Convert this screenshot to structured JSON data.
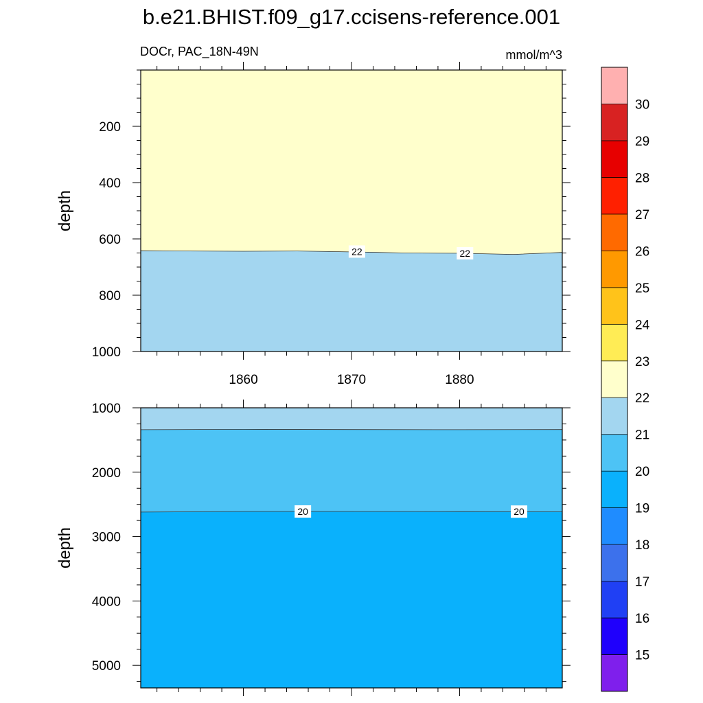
{
  "title": "b.e21.BHIST.f09_g17.ccisens-reference.001",
  "subtitle_left": "DOCr, PAC_18N-49N",
  "subtitle_right": "mmol/m^3",
  "chart_data": {
    "type": "heatmap",
    "x_ticks": [
      1860,
      1870,
      1880
    ],
    "xlim": [
      1850.5,
      1889.5
    ],
    "panels": [
      {
        "name": "upper",
        "ylabel": "depth",
        "ylim": [
          0,
          1000
        ],
        "y_reversed": true,
        "y_ticks": [
          200,
          400,
          600,
          800,
          1000
        ],
        "y_minor_step": 50,
        "show_x_tick_labels": true,
        "bands": [
          {
            "from": 0,
            "color": "#ffffcc"
          },
          {
            "contour": 22,
            "color": "#a3d6f0",
            "x": [
              1850.5,
              1855,
              1860,
              1865,
              1870,
              1875,
              1880,
              1885,
              1889.5
            ],
            "depth": [
              642,
              643,
              644,
              643,
              646,
              650,
              651,
              655,
              648
            ]
          }
        ],
        "contour_labels": [
          {
            "text": "22",
            "x": 1870.5,
            "depth": 645
          },
          {
            "text": "22",
            "x": 1880.5,
            "depth": 651
          }
        ]
      },
      {
        "name": "lower",
        "ylabel": "depth",
        "ylim": [
          1000,
          5350
        ],
        "y_reversed": true,
        "y_ticks": [
          1000,
          2000,
          3000,
          4000,
          5000
        ],
        "y_minor_step": 250,
        "show_x_tick_labels": false,
        "bands": [
          {
            "from": 1000,
            "color": "#a3d6f0"
          },
          {
            "contour": 21,
            "color": "#4dc3f5",
            "x": [
              1850.5,
              1860,
              1870,
              1880,
              1889.5
            ],
            "depth": [
              1340,
              1335,
              1338,
              1340,
              1338
            ]
          },
          {
            "contour": 20,
            "color": "#0ab1fc",
            "x": [
              1850.5,
              1860,
              1870,
              1880,
              1889.5
            ],
            "depth": [
              2620,
              2610,
              2610,
              2612,
              2615
            ]
          }
        ],
        "contour_labels": [
          {
            "text": "20",
            "x": 1865.5,
            "depth": 2610
          },
          {
            "text": "20",
            "x": 1885.5,
            "depth": 2612
          }
        ]
      }
    ],
    "colorbar": {
      "labels": [
        "15",
        "16",
        "17",
        "18",
        "19",
        "20",
        "21",
        "22",
        "23",
        "24",
        "25",
        "26",
        "27",
        "28",
        "29",
        "30"
      ],
      "colors": [
        "#7f1fec",
        "#1f00fc",
        "#2040f4",
        "#3c71ec",
        "#1f8cff",
        "#0ab1fc",
        "#4dc3f5",
        "#a3d6f0",
        "#ffffcc",
        "#ffec55",
        "#ffc31a",
        "#ff9900",
        "#ff6a00",
        "#ff2000",
        "#e70000",
        "#d82222",
        "#ffb0b0"
      ]
    }
  }
}
